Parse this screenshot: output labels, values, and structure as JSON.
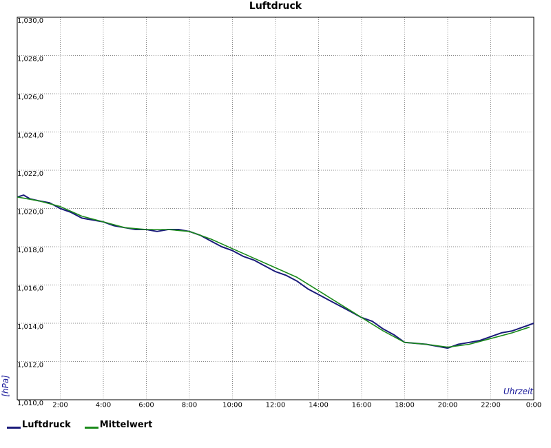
{
  "chart_data": {
    "type": "line",
    "title": "Luftdruck",
    "xlabel": "Uhrzeit",
    "ylabel": "[hPa]",
    "xlim": [
      0,
      24
    ],
    "ylim": [
      1010,
      1030
    ],
    "grid": true,
    "legend_position": "bottom-left",
    "x_ticks": [
      {
        "value": 2,
        "label": "2:00"
      },
      {
        "value": 4,
        "label": "4:00"
      },
      {
        "value": 6,
        "label": "6:00"
      },
      {
        "value": 8,
        "label": "8:00"
      },
      {
        "value": 10,
        "label": "10:00"
      },
      {
        "value": 12,
        "label": "12:00"
      },
      {
        "value": 14,
        "label": "14:00"
      },
      {
        "value": 16,
        "label": "16:00"
      },
      {
        "value": 18,
        "label": "18:00"
      },
      {
        "value": 20,
        "label": "20:00"
      },
      {
        "value": 22,
        "label": "22:00"
      },
      {
        "value": 24,
        "label": "0:00"
      }
    ],
    "y_ticks": [
      {
        "value": 1010,
        "label": "1,010,0"
      },
      {
        "value": 1012,
        "label": "1,012,0"
      },
      {
        "value": 1014,
        "label": "1,014,0"
      },
      {
        "value": 1016,
        "label": "1,016,0"
      },
      {
        "value": 1018,
        "label": "1,018,0"
      },
      {
        "value": 1020,
        "label": "1,020,0"
      },
      {
        "value": 1022,
        "label": "1,022,0"
      },
      {
        "value": 1024,
        "label": "1,024,0"
      },
      {
        "value": 1026,
        "label": "1,026,0"
      },
      {
        "value": 1028,
        "label": "1,028,0"
      },
      {
        "value": 1030,
        "label": "1,030,0"
      }
    ],
    "series": [
      {
        "name": "Luftdruck",
        "color": "#1a1a7a",
        "x": [
          0,
          0.3,
          0.6,
          1.0,
          1.5,
          2.0,
          2.5,
          3.0,
          3.5,
          4.0,
          4.5,
          5.0,
          5.5,
          6.0,
          6.5,
          7.0,
          7.5,
          8.0,
          8.5,
          9.0,
          9.5,
          10.0,
          10.5,
          11.0,
          11.5,
          12.0,
          12.5,
          13.0,
          13.5,
          14.0,
          14.5,
          15.0,
          15.5,
          16.0,
          16.5,
          17.0,
          17.5,
          18.0,
          18.5,
          19.0,
          19.5,
          20.0,
          20.5,
          21.0,
          21.5,
          22.0,
          22.5,
          23.0,
          23.5,
          24.0
        ],
        "values": [
          1020.6,
          1020.7,
          1020.5,
          1020.4,
          1020.3,
          1020.0,
          1019.8,
          1019.5,
          1019.4,
          1019.3,
          1019.1,
          1019.0,
          1018.9,
          1018.9,
          1018.8,
          1018.9,
          1018.9,
          1018.8,
          1018.6,
          1018.3,
          1018.0,
          1017.8,
          1017.5,
          1017.3,
          1017.0,
          1016.7,
          1016.5,
          1016.2,
          1015.8,
          1015.5,
          1015.2,
          1014.9,
          1014.6,
          1014.3,
          1014.1,
          1013.7,
          1013.4,
          1013.0,
          1012.95,
          1012.9,
          1012.8,
          1012.7,
          1012.9,
          1013.0,
          1013.1,
          1013.3,
          1013.5,
          1013.6,
          1013.8,
          1014.0
        ]
      },
      {
        "name": "Mittelwert",
        "color": "#1a8a1a",
        "x": [
          0,
          1.0,
          2.0,
          3.0,
          4.0,
          5.0,
          6.0,
          7.0,
          8.0,
          9.0,
          10.0,
          11.0,
          12.0,
          13.0,
          14.0,
          15.0,
          16.0,
          17.0,
          18.0,
          19.0,
          20.0,
          21.0,
          22.0,
          23.0,
          23.8
        ],
        "values": [
          1020.6,
          1020.4,
          1020.1,
          1019.6,
          1019.3,
          1019.0,
          1018.9,
          1018.9,
          1018.8,
          1018.4,
          1017.9,
          1017.4,
          1016.9,
          1016.4,
          1015.7,
          1015.0,
          1014.3,
          1013.6,
          1013.0,
          1012.9,
          1012.75,
          1012.9,
          1013.2,
          1013.5,
          1013.8
        ]
      }
    ]
  }
}
